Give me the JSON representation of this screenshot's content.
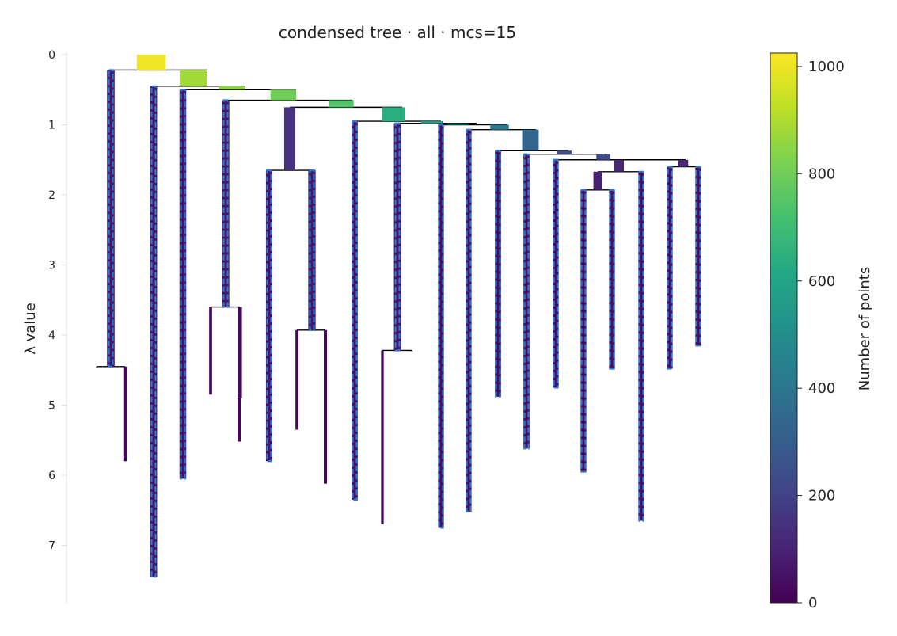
{
  "chart_data": {
    "type": "condensed-tree",
    "title": "condensed tree · all · mcs=15",
    "ylabel": "λ value",
    "ylim": [
      0,
      7.8
    ],
    "yticks": [
      0,
      1,
      2,
      3,
      4,
      5,
      6,
      7
    ],
    "y_axis_inverted": true,
    "colormap": "viridis",
    "colorbar": {
      "label": "Number of points",
      "range": [
        0,
        1025
      ],
      "ticks": [
        0,
        200,
        400,
        600,
        800,
        1000
      ]
    },
    "selected_cluster_style": "dashed blue outline",
    "clusters": [
      {
        "id": "root",
        "x": 191,
        "birth": 0.0,
        "death": 0.22,
        "size": 1000
      },
      {
        "id": "c1",
        "x": 244,
        "birth": 0.22,
        "death": 0.45,
        "size": 880
      },
      {
        "id": "c2",
        "x": 293,
        "birth": 0.45,
        "death": 0.5,
        "size": 850
      },
      {
        "id": "c3",
        "x": 358,
        "birth": 0.5,
        "death": 0.65,
        "size": 800
      },
      {
        "id": "c4",
        "x": 431,
        "birth": 0.65,
        "death": 0.75,
        "size": 740
      },
      {
        "id": "c5",
        "x": 497,
        "birth": 0.75,
        "death": 0.95,
        "size": 640
      },
      {
        "id": "c6",
        "x": 546,
        "birth": 0.95,
        "death": 0.98,
        "size": 580
      },
      {
        "id": "c7",
        "x": 578,
        "birth": 0.98,
        "death": 1.0,
        "size": 540
      },
      {
        "id": "c8",
        "x": 631,
        "birth": 1.0,
        "death": 1.07,
        "size": 420
      },
      {
        "id": "c9",
        "x": 670,
        "birth": 1.07,
        "death": 1.37,
        "size": 330
      },
      {
        "id": "c10",
        "x": 713,
        "birth": 1.37,
        "death": 1.42,
        "size": 250
      },
      {
        "id": "c11",
        "x": 762,
        "birth": 1.42,
        "death": 1.5,
        "size": 230
      },
      {
        "id": "c12",
        "x": 863,
        "birth": 1.5,
        "death": 1.6,
        "size": 120
      },
      {
        "id": "c13",
        "x": 782,
        "birth": 1.5,
        "death": 1.67,
        "size": 110
      },
      {
        "id": "c14",
        "x": 755,
        "birth": 1.67,
        "death": 1.93,
        "size": 90
      },
      {
        "id": "c15",
        "x": 366,
        "birth": 0.75,
        "death": 1.65,
        "size": 150
      },
      {
        "id": "L1",
        "x": 140,
        "birth": 0.22,
        "death": 4.45,
        "size": 70,
        "selected": true
      },
      {
        "id": "L1a",
        "x": 122,
        "birth": 4.45,
        "death": 4.45,
        "size": 2
      },
      {
        "id": "L1b",
        "x": 158,
        "birth": 4.45,
        "death": 5.8,
        "size": 15
      },
      {
        "id": "L2",
        "x": 194,
        "birth": 0.45,
        "death": 7.45,
        "size": 60,
        "selected": true
      },
      {
        "id": "L3",
        "x": 231,
        "birth": 0.5,
        "death": 6.05,
        "size": 55,
        "selected": true
      },
      {
        "id": "L4",
        "x": 285,
        "birth": 0.65,
        "death": 3.6,
        "size": 65,
        "selected": true
      },
      {
        "id": "L4a",
        "x": 266,
        "birth": 3.6,
        "death": 4.85,
        "size": 10
      },
      {
        "id": "L4b",
        "x": 303,
        "birth": 3.6,
        "death": 4.9,
        "size": 20
      },
      {
        "id": "L4b2",
        "x": 302,
        "birth": 4.9,
        "death": 5.52,
        "size": 12
      },
      {
        "id": "L5",
        "x": 340,
        "birth": 1.65,
        "death": 5.8,
        "size": 50,
        "selected": true
      },
      {
        "id": "L6",
        "x": 394,
        "birth": 1.65,
        "death": 3.93,
        "size": 65,
        "selected": true
      },
      {
        "id": "L6a",
        "x": 375,
        "birth": 3.93,
        "death": 5.35,
        "size": 10
      },
      {
        "id": "L6b",
        "x": 411,
        "birth": 3.93,
        "death": 6.12,
        "size": 12
      },
      {
        "id": "L7",
        "x": 448,
        "birth": 0.95,
        "death": 6.35,
        "size": 45,
        "selected": true
      },
      {
        "id": "L8",
        "x": 502,
        "birth": 0.98,
        "death": 4.22,
        "size": 60,
        "selected": true
      },
      {
        "id": "L8a",
        "x": 483,
        "birth": 4.22,
        "death": 6.7,
        "size": 8
      },
      {
        "id": "L8b",
        "x": 520,
        "birth": 4.22,
        "death": 4.22,
        "size": 5
      },
      {
        "id": "L9",
        "x": 557,
        "birth": 1.0,
        "death": 6.75,
        "size": 40,
        "selected": true
      },
      {
        "id": "L10",
        "x": 592,
        "birth": 1.07,
        "death": 6.52,
        "size": 40,
        "selected": true
      },
      {
        "id": "L11",
        "x": 629,
        "birth": 1.37,
        "death": 4.88,
        "size": 45,
        "selected": true
      },
      {
        "id": "L12",
        "x": 665,
        "birth": 1.42,
        "death": 5.62,
        "size": 45,
        "selected": true
      },
      {
        "id": "L13",
        "x": 702,
        "birth": 1.5,
        "death": 4.75,
        "size": 40,
        "selected": true
      },
      {
        "id": "L14",
        "x": 737,
        "birth": 1.93,
        "death": 5.95,
        "size": 40,
        "selected": true
      },
      {
        "id": "L15",
        "x": 773,
        "birth": 1.93,
        "death": 4.48,
        "size": 40,
        "selected": true
      },
      {
        "id": "L16",
        "x": 810,
        "birth": 1.67,
        "death": 6.65,
        "size": 40,
        "selected": true
      },
      {
        "id": "L17",
        "x": 846,
        "birth": 1.6,
        "death": 4.48,
        "size": 40,
        "selected": true
      },
      {
        "id": "L18",
        "x": 882,
        "birth": 1.6,
        "death": 4.15,
        "size": 40,
        "selected": true
      }
    ],
    "links": [
      {
        "y": 0.22,
        "from": 140,
        "to": 262
      },
      {
        "y": 0.45,
        "from": 194,
        "to": 310
      },
      {
        "y": 0.5,
        "from": 231,
        "to": 374
      },
      {
        "y": 0.65,
        "from": 285,
        "to": 445
      },
      {
        "y": 0.75,
        "from": 366,
        "to": 508
      },
      {
        "y": 0.95,
        "from": 448,
        "to": 557
      },
      {
        "y": 0.98,
        "from": 502,
        "to": 602
      },
      {
        "y": 1.0,
        "from": 557,
        "to": 640
      },
      {
        "y": 1.07,
        "from": 592,
        "to": 677
      },
      {
        "y": 1.37,
        "from": 629,
        "to": 718
      },
      {
        "y": 1.42,
        "from": 665,
        "to": 766
      },
      {
        "y": 1.5,
        "from": 702,
        "to": 866
      },
      {
        "y": 1.67,
        "from": 755,
        "to": 810
      },
      {
        "y": 1.6,
        "from": 846,
        "to": 882
      },
      {
        "y": 1.93,
        "from": 737,
        "to": 773
      },
      {
        "y": 1.65,
        "from": 340,
        "to": 394
      },
      {
        "y": 3.6,
        "from": 266,
        "to": 303
      },
      {
        "y": 3.93,
        "from": 375,
        "to": 411
      },
      {
        "y": 4.22,
        "from": 483,
        "to": 520
      },
      {
        "y": 4.45,
        "from": 122,
        "to": 158
      }
    ]
  }
}
